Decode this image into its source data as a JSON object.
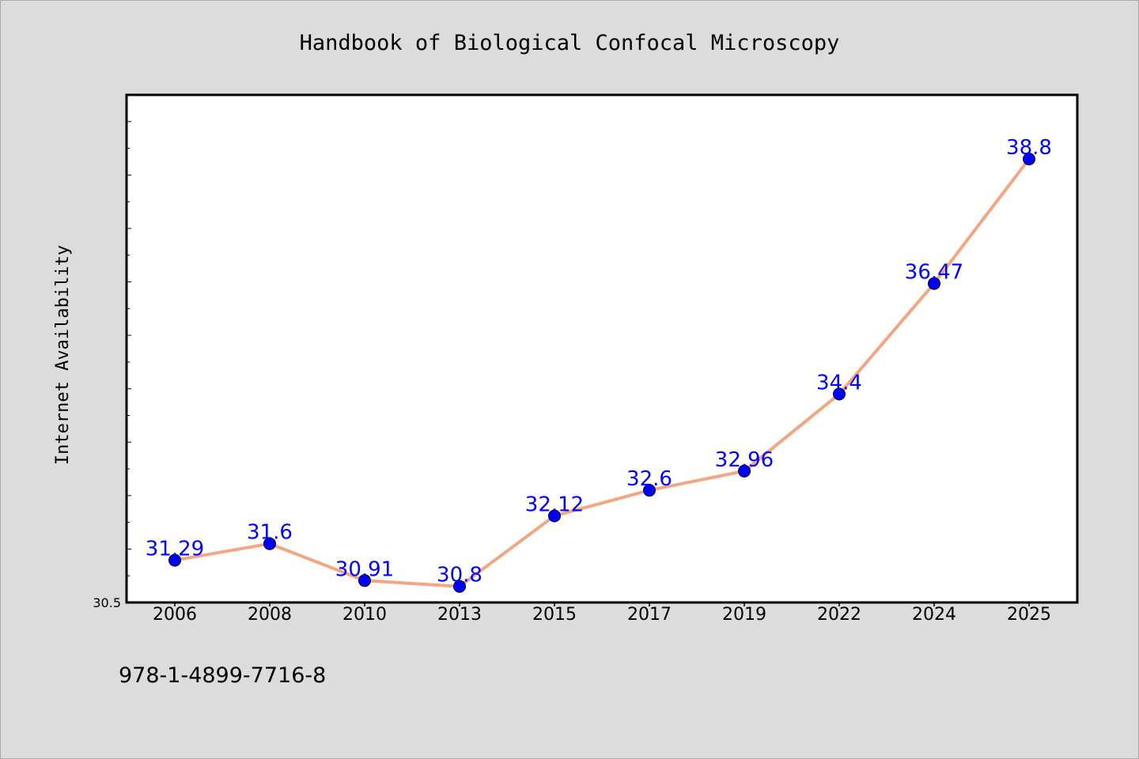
{
  "chart_data": {
    "type": "line",
    "title": "Handbook of Biological Confocal Microscopy",
    "xlabel": "",
    "ylabel": "Internet Availability",
    "categories": [
      "2006",
      "2008",
      "2010",
      "2013",
      "2015",
      "2017",
      "2019",
      "2022",
      "2024",
      "2025"
    ],
    "series": [
      {
        "values": [
          31.29,
          31.6,
          30.91,
          30.8,
          32.12,
          32.6,
          32.96,
          34.4,
          36.47,
          38.8
        ]
      }
    ],
    "data_labels": [
      "31.29",
      "31.6",
      "30.91",
      "30.8",
      "32.12",
      "32.6",
      "32.96",
      "34.4",
      "36.47",
      "38.8"
    ],
    "ylim": [
      30.5,
      40.0
    ],
    "ytick_label": "30.5",
    "line_color": "#f4a582",
    "marker_color": "#0000ff",
    "label_color": "#0000ff",
    "grid": false,
    "legend": "none"
  },
  "footer_text": "978-1-4899-7716-8"
}
